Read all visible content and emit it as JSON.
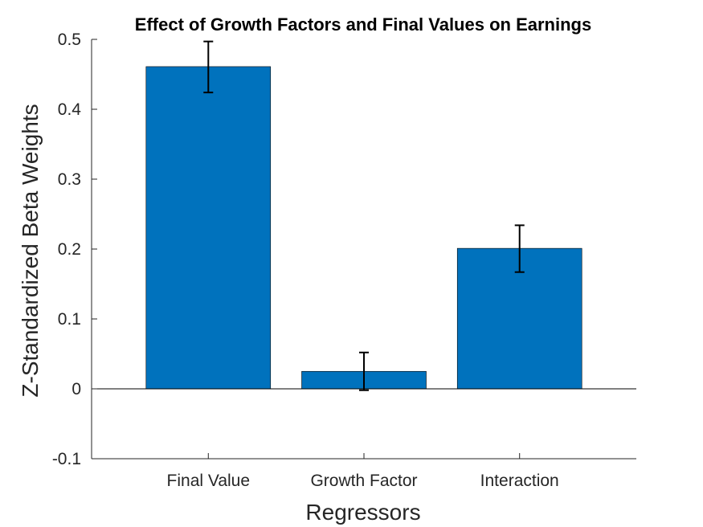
{
  "chart_data": {
    "type": "bar",
    "title": "Effect of Growth Factors and Final Values on Earnings",
    "xlabel": "Regressors",
    "ylabel": "Z-Standardized Beta Weights",
    "categories": [
      "Final Value",
      "Growth Factor",
      "Interaction"
    ],
    "values": [
      0.461,
      0.025,
      0.201
    ],
    "error_low": [
      0.424,
      -0.002,
      0.167
    ],
    "error_high": [
      0.497,
      0.052,
      0.234
    ],
    "ylim": [
      -0.1,
      0.5
    ],
    "yticks": [
      "-0.1",
      "0",
      "0.1",
      "0.2",
      "0.3",
      "0.4",
      "0.5"
    ],
    "grid": false,
    "bar_color": "#0072BD",
    "error_color": "#000000"
  }
}
